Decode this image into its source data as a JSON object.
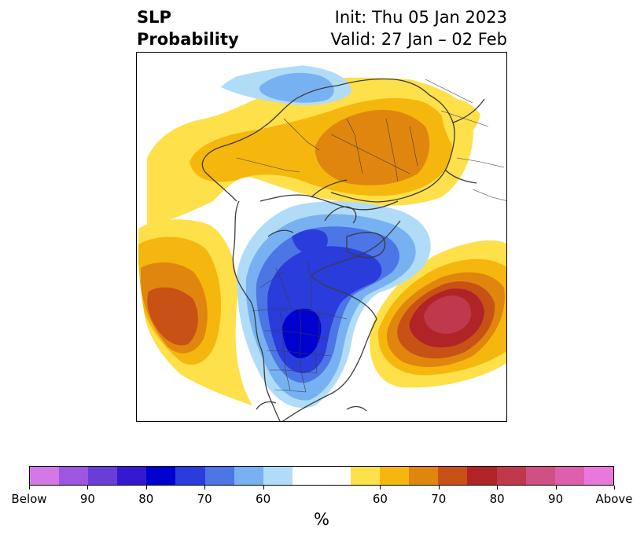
{
  "title": {
    "left_line1": "SLP",
    "left_line2": "Probability",
    "right_line1": "Init: Thu 05 Jan 2023",
    "right_line2": "Valid: 27 Jan – 02 Feb"
  },
  "map": {
    "projection": "polar stereographic (North America / North Atlantic)",
    "features": [
      "coastlines",
      "country borders",
      "US state borders",
      "Canadian province borders"
    ],
    "anomalies": [
      {
        "region": "Central Canada / northern US Plains",
        "category": "Below",
        "max_probability": "80-85"
      },
      {
        "region": "Hudson Bay / Baffin Island",
        "category": "Below",
        "max_probability": "75-80"
      },
      {
        "region": "Arctic north of Alaska",
        "category": "Below",
        "max_probability": "60-65"
      },
      {
        "region": "Central North Atlantic",
        "category": "Above",
        "max_probability": "85-90"
      },
      {
        "region": "North Pacific (Gulf of Alaska)",
        "category": "Above",
        "max_probability": "75-80"
      },
      {
        "region": "Russia / Siberia",
        "category": "Above",
        "max_probability": "70-75"
      },
      {
        "region": "Arctic Ocean / Greenland",
        "category": "Above",
        "max_probability": "60-65"
      }
    ]
  },
  "colorbar": {
    "unit_label": "%",
    "colors": [
      "#d478e8",
      "#9d56e0",
      "#6b3dd8",
      "#3519d1",
      "#0000cf",
      "#2a3cdc",
      "#4c75e6",
      "#78b1f2",
      "#b0dcf8",
      "#ffffff",
      "#ffffff",
      "#fee04a",
      "#f5b70d",
      "#e0860e",
      "#c85116",
      "#b02326",
      "#c0384b",
      "#d05083",
      "#de5fab",
      "#e978dd"
    ],
    "tick_labels": [
      "Below",
      "90",
      "80",
      "70",
      "60",
      "60",
      "70",
      "80",
      "90",
      "Above"
    ]
  }
}
